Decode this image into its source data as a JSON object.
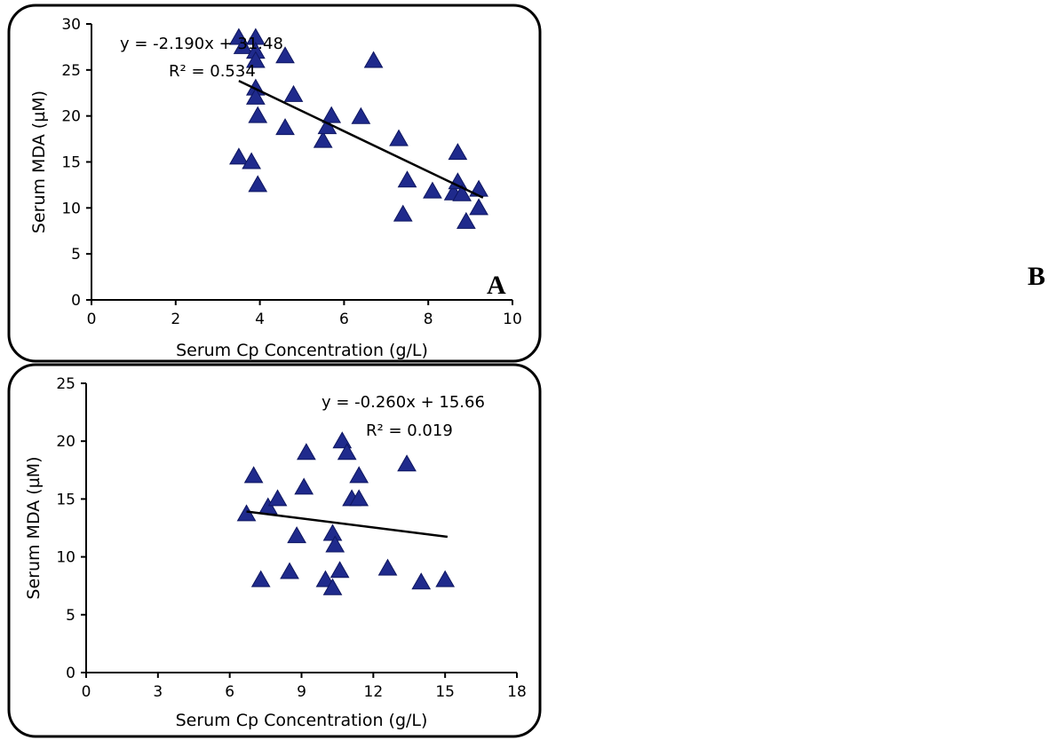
{
  "panel_letters": [
    "A",
    "B"
  ],
  "chart_data": [
    {
      "type": "scatter",
      "panel": "A",
      "xlabel": "Serum Cp Concentration (g/L)",
      "ylabel": "Serum MDA (µM)",
      "xlim": [
        0,
        10
      ],
      "ylim": [
        0,
        30
      ],
      "xticks": [
        0,
        2,
        4,
        6,
        8,
        10
      ],
      "yticks": [
        0,
        5,
        10,
        15,
        20,
        25,
        30
      ],
      "grid": false,
      "marker": "triangle",
      "marker_color": "#1f2a8c",
      "trendline": {
        "equation": "y = -2.190x + 31.48",
        "r2": "R² = 0.534",
        "slope": -2.19,
        "intercept": 31.48,
        "x_range": [
          3.5,
          9.3
        ]
      },
      "points": [
        [
          3.5,
          28.5
        ],
        [
          3.6,
          27.5
        ],
        [
          3.9,
          28.5
        ],
        [
          3.9,
          27.0
        ],
        [
          3.9,
          26.0
        ],
        [
          3.9,
          23.0
        ],
        [
          3.9,
          22.0
        ],
        [
          3.95,
          20.0
        ],
        [
          3.5,
          15.5
        ],
        [
          3.8,
          15.0
        ],
        [
          3.95,
          12.5
        ],
        [
          4.6,
          26.5
        ],
        [
          4.8,
          22.3
        ],
        [
          4.6,
          18.7
        ],
        [
          5.5,
          17.3
        ],
        [
          5.6,
          18.8
        ],
        [
          5.7,
          20.0
        ],
        [
          6.4,
          19.9
        ],
        [
          6.7,
          26.0
        ],
        [
          7.3,
          17.5
        ],
        [
          7.4,
          9.3
        ],
        [
          7.5,
          13.0
        ],
        [
          8.1,
          11.8
        ],
        [
          8.6,
          11.6
        ],
        [
          8.7,
          16.0
        ],
        [
          8.7,
          12.8
        ],
        [
          8.8,
          11.5
        ],
        [
          8.9,
          8.5
        ],
        [
          9.2,
          12.0
        ],
        [
          9.2,
          10.0
        ]
      ]
    },
    {
      "type": "scatter",
      "panel": "B",
      "xlabel": "Serum Cp Concentration (g/L)",
      "ylabel": "Serum MDA (µM)",
      "xlim": [
        0,
        18
      ],
      "ylim": [
        0,
        25
      ],
      "xticks": [
        0,
        3,
        6,
        9,
        12,
        15,
        18
      ],
      "yticks": [
        0,
        5,
        10,
        15,
        20,
        25
      ],
      "grid": false,
      "marker": "triangle",
      "marker_color": "#1f2a8c",
      "trendline": {
        "equation": "y = -0.260x + 15.66",
        "r2": "R² = 0.019",
        "slope": -0.26,
        "intercept": 15.66,
        "x_range": [
          6.7,
          15.1
        ]
      },
      "points": [
        [
          6.7,
          13.7
        ],
        [
          7.0,
          17.0
        ],
        [
          7.3,
          8.0
        ],
        [
          7.6,
          14.3
        ],
        [
          8.0,
          15.0
        ],
        [
          8.5,
          8.7
        ],
        [
          8.8,
          11.8
        ],
        [
          9.1,
          16.0
        ],
        [
          9.2,
          19.0
        ],
        [
          10.0,
          8.0
        ],
        [
          10.3,
          12.0
        ],
        [
          10.3,
          7.3
        ],
        [
          10.4,
          11.0
        ],
        [
          10.6,
          8.8
        ],
        [
          10.7,
          20.0
        ],
        [
          10.9,
          19.0
        ],
        [
          11.1,
          15.0
        ],
        [
          11.4,
          17.0
        ],
        [
          11.4,
          15.0
        ],
        [
          12.6,
          9.0
        ],
        [
          13.4,
          18.0
        ],
        [
          14.0,
          7.8
        ],
        [
          15.0,
          8.0
        ]
      ]
    }
  ]
}
